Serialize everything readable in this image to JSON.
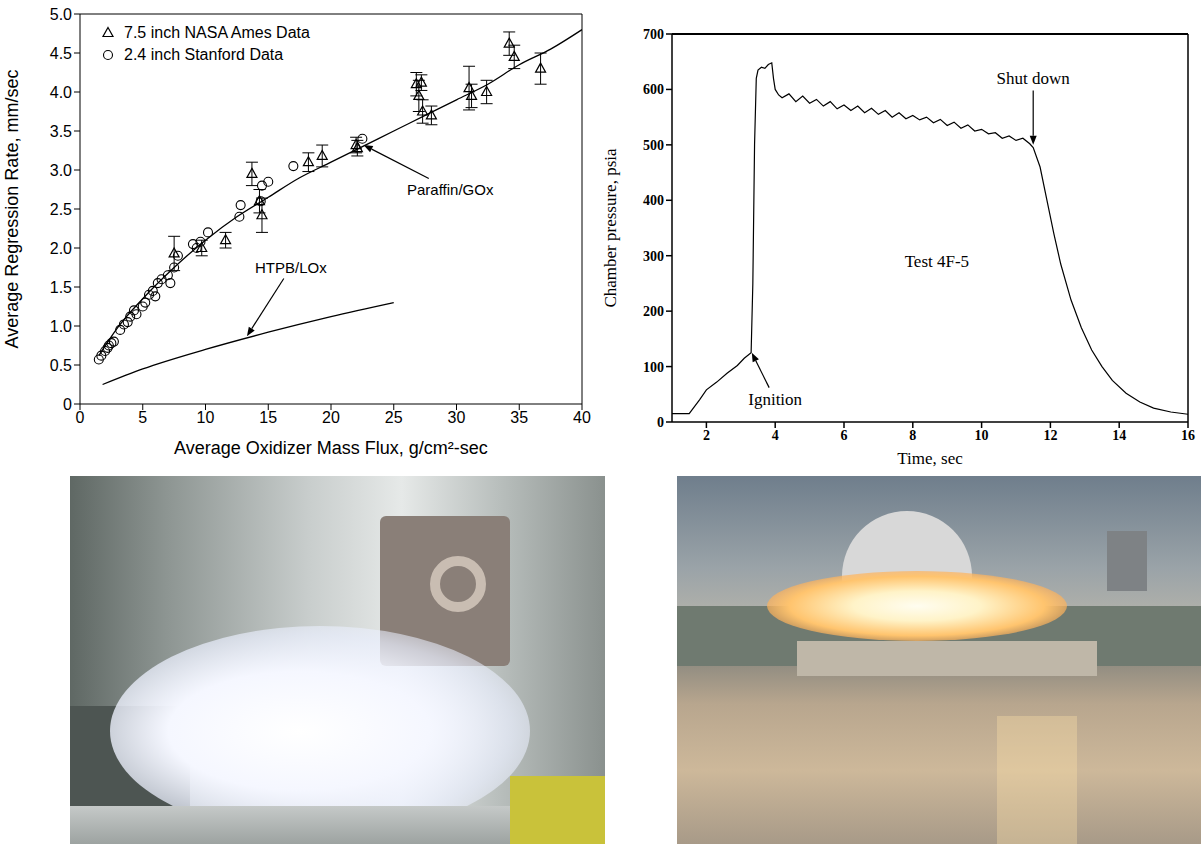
{
  "chart_data": [
    {
      "type": "scatter",
      "xlabel": "Average Oxidizer Mass Flux, g/cm²-sec",
      "ylabel": "Average Regression Rate, mm/sec",
      "xlim": [
        0,
        40
      ],
      "ylim": [
        0,
        5
      ],
      "xticks": [
        0,
        5,
        10,
        15,
        20,
        25,
        30,
        35,
        40
      ],
      "yticks": [
        0,
        0.5,
        {
          "value": 1,
          "label": "1.0"
        },
        1.5,
        {
          "value": 2,
          "label": "2.0"
        },
        2.5,
        {
          "value": 3,
          "label": "3.0"
        },
        3.5,
        {
          "value": 4,
          "label": "4.0"
        },
        4.5,
        {
          "value": 5,
          "label": "5.0"
        }
      ],
      "grid": false,
      "legend": "upper left",
      "series": [
        {
          "name": "7.5 inch NASA Ames Data",
          "type": "scatter",
          "marker": "triangle",
          "color": "#000000",
          "x": [
            7.5,
            9.7,
            11.6,
            13.7,
            14.3,
            14.5,
            18.2,
            19.3,
            22,
            22.1,
            26.8,
            27,
            27.2,
            27.3,
            28,
            31,
            31.2,
            32.4,
            34.2,
            34.6,
            36.7
          ],
          "values": [
            1.93,
            2.0,
            2.1,
            2.95,
            2.6,
            2.42,
            3.1,
            3.18,
            3.32,
            3.28,
            4.1,
            3.95,
            4.12,
            3.75,
            3.7,
            4.05,
            3.95,
            4.0,
            4.62,
            4.45,
            4.3
          ],
          "errors": [
            0.22,
            0.1,
            0.1,
            0.15,
            0.15,
            0.22,
            0.12,
            0.14,
            0.1,
            0.1,
            0.15,
            0.2,
            0.1,
            0.15,
            0.12,
            0.28,
            0.15,
            0.15,
            0.15,
            0.15,
            0.2
          ]
        },
        {
          "name": "2.4 inch Stanford Data",
          "type": "scatter",
          "marker": "circle",
          "color": "#000000",
          "x": [
            1.5,
            1.7,
            2.0,
            2.2,
            2.3,
            2.5,
            2.7,
            3.2,
            3.5,
            3.8,
            4.0,
            4.3,
            4.5,
            5.0,
            5.2,
            5.5,
            5.8,
            6.0,
            6.2,
            6.5,
            7.0,
            7.2,
            7.5,
            7.8,
            9.0,
            9.3,
            9.6,
            10.2,
            12.7,
            12.8,
            14.4,
            14.5,
            15.0,
            17.0,
            22.5
          ],
          "values": [
            0.57,
            0.62,
            0.68,
            0.72,
            0.75,
            0.78,
            0.8,
            0.95,
            1.02,
            1.05,
            1.12,
            1.2,
            1.15,
            1.25,
            1.3,
            1.4,
            1.45,
            1.38,
            1.55,
            1.6,
            1.65,
            1.55,
            1.75,
            1.9,
            2.05,
            2.0,
            2.08,
            2.2,
            2.4,
            2.55,
            2.6,
            2.8,
            2.85,
            3.05,
            3.4
          ]
        },
        {
          "type": "line",
          "line_style": "solid",
          "color": "#000000",
          "x": [
            1.5,
            3,
            5,
            7.5,
            10,
            12.5,
            15,
            17.5,
            20,
            22.5,
            25,
            27.5,
            30,
            32.5,
            35,
            37.5,
            40
          ],
          "values": [
            0.62,
            0.98,
            1.35,
            1.75,
            2.1,
            2.4,
            2.65,
            2.9,
            3.1,
            3.3,
            3.5,
            3.7,
            3.9,
            4.1,
            4.35,
            4.55,
            4.8
          ]
        },
        {
          "type": "line",
          "line_style": "solid",
          "color": "#000000",
          "x": [
            1.8,
            5,
            10,
            15,
            20,
            25
          ],
          "values": [
            0.25,
            0.45,
            0.7,
            0.92,
            1.12,
            1.3
          ]
        }
      ],
      "annotations": [
        {
          "text": "Paraffin/GOx",
          "x": 29.5,
          "y": 2.75,
          "arrow_x": 22.6,
          "arrow_y": 3.32
        },
        {
          "text": "HTPB/LOx",
          "x": 16.8,
          "y": 1.75,
          "arrow_x": 13.3,
          "arrow_y": 0.87
        }
      ]
    },
    {
      "type": "line",
      "xlabel": "Time, sec",
      "ylabel": "Chamber pressure, psia",
      "xlim": [
        1,
        16
      ],
      "ylim": [
        0,
        700
      ],
      "xticks": [
        2,
        4,
        6,
        8,
        10,
        12,
        14,
        16
      ],
      "yticks": [
        0,
        100,
        200,
        300,
        400,
        500,
        600,
        700
      ],
      "grid": false,
      "x": [
        1,
        1.5,
        1.8,
        2.0,
        2.3,
        2.6,
        2.9,
        3.1,
        3.3,
        3.35,
        3.4,
        3.45,
        3.5,
        3.6,
        3.7,
        3.8,
        3.9,
        3.95,
        4.0,
        4.1,
        4.2,
        4.4,
        4.6,
        4.8,
        5.0,
        5.2,
        5.4,
        5.6,
        5.8,
        6.0,
        6.2,
        6.4,
        6.6,
        6.8,
        7.0,
        7.2,
        7.4,
        7.6,
        7.8,
        8.0,
        8.2,
        8.4,
        8.6,
        8.8,
        9.0,
        9.2,
        9.4,
        9.6,
        9.8,
        10.0,
        10.2,
        10.4,
        10.6,
        10.8,
        11.0,
        11.2,
        11.4,
        11.5,
        11.7,
        11.9,
        12.1,
        12.3,
        12.6,
        12.9,
        13.2,
        13.5,
        13.8,
        14.2,
        14.6,
        15.0,
        15.5,
        16.0
      ],
      "series": [
        {
          "color": "#000000",
          "line_style": "solid",
          "values": [
            15,
            15,
            40,
            58,
            72,
            88,
            102,
            115,
            125,
            250,
            500,
            620,
            635,
            640,
            638,
            645,
            648,
            620,
            600,
            590,
            585,
            592,
            578,
            588,
            575,
            582,
            570,
            578,
            565,
            572,
            562,
            570,
            558,
            566,
            555,
            562,
            550,
            558,
            547,
            553,
            545,
            550,
            540,
            546,
            535,
            541,
            530,
            536,
            525,
            528,
            520,
            522,
            512,
            516,
            508,
            512,
            502,
            495,
            460,
            400,
            340,
            285,
            220,
            170,
            130,
            100,
            75,
            52,
            36,
            25,
            18,
            14
          ]
        }
      ],
      "annotations": [
        {
          "text": "Ignition",
          "x": 4.0,
          "y": 40,
          "arrow_x": 3.32,
          "arrow_y": 125
        },
        {
          "text": "Shut down",
          "x": 11.5,
          "y": 620,
          "arrow_x": 11.5,
          "arrow_y": 500
        },
        {
          "text": "Test 4F-5",
          "x": 8.7,
          "y": 290
        }
      ]
    }
  ]
}
